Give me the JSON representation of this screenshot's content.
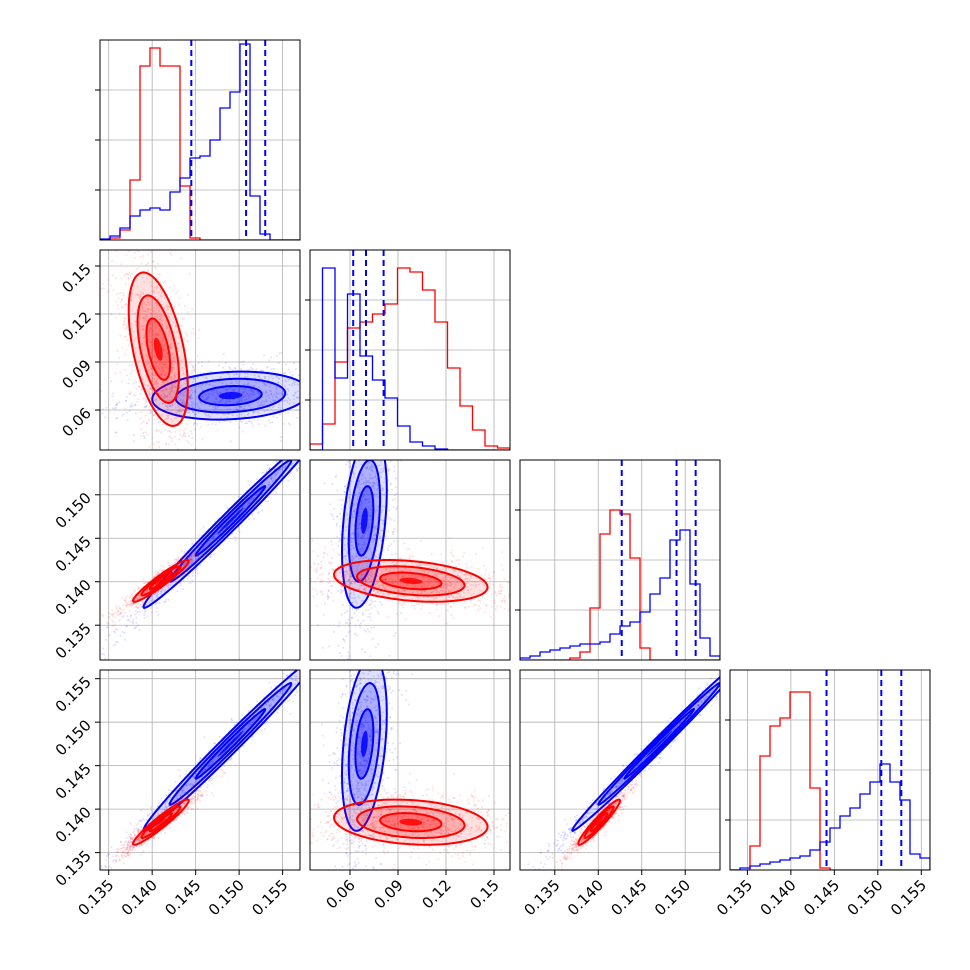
{
  "colors": {
    "red": "#ff0000",
    "blue": "#0000ff",
    "grid": "#b0b0b0"
  },
  "chart_data": {
    "type": "corner",
    "grid": true,
    "parameters": [
      {
        "range": [
          0.134,
          0.157
        ],
        "ticks": [
          0.135,
          0.14,
          0.145,
          0.15,
          0.155
        ],
        "tick_labels": [
          "0.135",
          "0.140",
          "0.145",
          "0.150",
          "0.155"
        ]
      },
      {
        "range": [
          0.035,
          0.16
        ],
        "ticks": [
          0.06,
          0.09,
          0.12,
          0.15
        ],
        "tick_labels": [
          "0.06",
          "0.09",
          "0.12",
          "0.15"
        ]
      },
      {
        "range": [
          0.131,
          0.154
        ],
        "ticks": [
          0.135,
          0.14,
          0.145,
          0.15
        ],
        "tick_labels": [
          "0.135",
          "0.140",
          "0.145",
          "0.150"
        ]
      },
      {
        "range": [
          0.133,
          0.156
        ],
        "ticks": [
          0.135,
          0.14,
          0.145,
          0.15,
          0.155
        ],
        "tick_labels": [
          "0.135",
          "0.140",
          "0.145",
          "0.150",
          "0.155"
        ]
      }
    ],
    "series": [
      {
        "color": "red",
        "histograms": [
          [
            0,
            0.01,
            0.05,
            0.3,
            0.87,
            0.96,
            0.87,
            0.87,
            0.27,
            0.01,
            0,
            0,
            0,
            0,
            0,
            0,
            0,
            0,
            0,
            0
          ],
          [
            0.03,
            0.13,
            0.44,
            0.61,
            0.64,
            0.68,
            0.73,
            0.91,
            0.89,
            0.8,
            0.64,
            0.41,
            0.22,
            0.1,
            0.02,
            0.01
          ],
          [
            0,
            0,
            0,
            0,
            0,
            0.01,
            0.04,
            0.26,
            0.63,
            0.75,
            0.73,
            0.51,
            0.06,
            0,
            0,
            0,
            0,
            0,
            0,
            0
          ],
          [
            0,
            0,
            0.12,
            0.57,
            0.72,
            0.76,
            0.89,
            0.89,
            0.41,
            0.01,
            0,
            0,
            0,
            0,
            0,
            0,
            0,
            0,
            0,
            0
          ]
        ],
        "quantiles": [
          [],
          [],
          [],
          []
        ]
      },
      {
        "color": "blue",
        "histograms": [
          [
            0.005,
            0.02,
            0.06,
            0.12,
            0.15,
            0.16,
            0.15,
            0.24,
            0.31,
            0.41,
            0.42,
            0.5,
            0.66,
            0.74,
            0.98,
            0.22,
            0.03,
            0,
            0,
            0
          ],
          [
            0,
            0.91,
            0.36,
            0.78,
            0.47,
            0.35,
            0.26,
            0.12,
            0.04,
            0.02,
            0.005,
            0,
            0,
            0,
            0,
            0
          ],
          [
            0.01,
            0.02,
            0.04,
            0.05,
            0.06,
            0.07,
            0.08,
            0.08,
            0.09,
            0.13,
            0.17,
            0.19,
            0.24,
            0.33,
            0.41,
            0.6,
            0.65,
            0.38,
            0.11,
            0.02
          ],
          [
            0,
            0.01,
            0.02,
            0.03,
            0.04,
            0.05,
            0.06,
            0.07,
            0.1,
            0.14,
            0.21,
            0.27,
            0.31,
            0.38,
            0.44,
            0.53,
            0.44,
            0.35,
            0.08,
            0.06
          ]
        ],
        "quantiles": [
          [
            0.1445,
            0.1508,
            0.153
          ],
          [
            0.062,
            0.07,
            0.081
          ],
          [
            0.1427,
            0.149,
            0.1512
          ],
          [
            0.1441,
            0.1504,
            0.1527
          ]
        ]
      }
    ],
    "pairs": [
      {
        "row": 1,
        "col": 0,
        "red": {
          "mean": [
            0.1407,
            0.098
          ],
          "sd": [
            0.0017,
            0.024
          ],
          "rho": -0.5
        },
        "blue": {
          "mean": [
            0.149,
            0.069
          ],
          "sd": [
            0.0045,
            0.0075
          ],
          "rho": 0.15
        }
      },
      {
        "row": 2,
        "col": 0,
        "red": {
          "mean": [
            0.141,
            0.1401
          ],
          "sd": [
            0.0016,
            0.0012
          ],
          "rho": 0.95
        },
        "blue": {
          "mean": [
            0.149,
            0.147
          ],
          "sd": [
            0.005,
            0.005
          ],
          "rho": 0.99
        }
      },
      {
        "row": 2,
        "col": 1,
        "red": {
          "mean": [
            0.098,
            0.1401
          ],
          "sd": [
            0.024,
            0.0012
          ],
          "rho": -0.3
        },
        "blue": {
          "mean": [
            0.069,
            0.147
          ],
          "sd": [
            0.007,
            0.005
          ],
          "rho": 0.35
        }
      },
      {
        "row": 3,
        "col": 0,
        "red": {
          "mean": [
            0.141,
            0.1385
          ],
          "sd": [
            0.0016,
            0.0013
          ],
          "rho": 0.95
        },
        "blue": {
          "mean": [
            0.149,
            0.1475
          ],
          "sd": [
            0.005,
            0.005
          ],
          "rho": 0.99
        }
      },
      {
        "row": 3,
        "col": 1,
        "red": {
          "mean": [
            0.098,
            0.1385
          ],
          "sd": [
            0.024,
            0.0013
          ],
          "rho": -0.2
        },
        "blue": {
          "mean": [
            0.069,
            0.1475
          ],
          "sd": [
            0.007,
            0.005
          ],
          "rho": 0.35
        }
      },
      {
        "row": 3,
        "col": 2,
        "red": {
          "mean": [
            0.1401,
            0.1385
          ],
          "sd": [
            0.0012,
            0.0013
          ],
          "rho": 0.95
        },
        "blue": {
          "mean": [
            0.147,
            0.1475
          ],
          "sd": [
            0.005,
            0.005
          ],
          "rho": 0.995
        }
      }
    ]
  }
}
